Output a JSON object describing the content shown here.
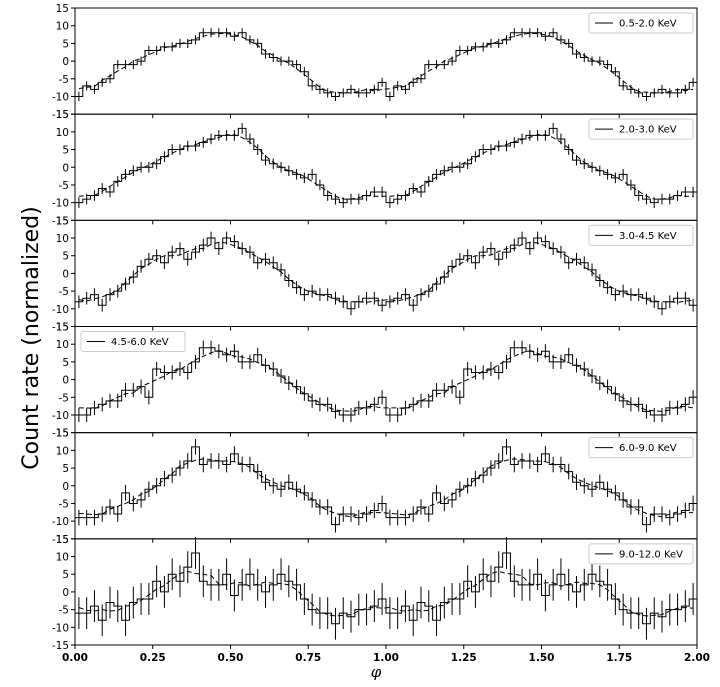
{
  "chart_data": {
    "type": "line",
    "ylabel": "Count rate (normalized)",
    "xlabel": "φ",
    "xlim": [
      0.0,
      2.0
    ],
    "ylim": [
      -15,
      15
    ],
    "xticks": [
      "0.00",
      "0.25",
      "0.50",
      "0.75",
      "1.00",
      "1.25",
      "1.50",
      "1.75",
      "2.00"
    ],
    "yticks": [
      "15",
      "10",
      "5",
      "0",
      "-5",
      "-10",
      "-15"
    ],
    "grid": false,
    "legend_placement": [
      "top-right",
      "top-right",
      "top-right",
      "top-left",
      "top-right",
      "top-right"
    ],
    "panels": [
      {
        "name": "0.5-2.0 KeV",
        "err": 1.3,
        "values": [
          -10,
          -7,
          -8,
          -6,
          -5,
          -1,
          -1,
          -1,
          0,
          3,
          3,
          4,
          4,
          5,
          5,
          6,
          8,
          8,
          8,
          8,
          7,
          8,
          6,
          5,
          2,
          1,
          0,
          0,
          -1,
          -3,
          -7,
          -8,
          -9,
          -10,
          -9,
          -8,
          -9,
          -9,
          -8,
          -6,
          -10,
          -7,
          -8,
          -6,
          -5,
          -1,
          -1,
          -1,
          0,
          3,
          3,
          4,
          4,
          5,
          5,
          6,
          8,
          8,
          8,
          8,
          7,
          8,
          6,
          5,
          2,
          1,
          0,
          0,
          -1,
          -3,
          -7,
          -8,
          -9,
          -10,
          -9,
          -8,
          -9,
          -9,
          -8,
          -6
        ]
      },
      {
        "name": "2.0-3.0 KeV",
        "err": 1.5,
        "values": [
          -10,
          -9,
          -8,
          -6,
          -7,
          -4,
          -2,
          -1,
          0,
          0,
          1,
          3,
          5,
          5,
          6,
          6,
          7,
          8,
          9,
          9,
          9,
          11,
          8,
          5,
          2,
          1,
          0,
          -1,
          -2,
          -3,
          -2,
          -5,
          -8,
          -9,
          -10,
          -9,
          -9,
          -8,
          -7,
          -7,
          -10,
          -9,
          -8,
          -6,
          -7,
          -4,
          -2,
          -1,
          0,
          0,
          1,
          3,
          5,
          5,
          6,
          6,
          7,
          8,
          9,
          9,
          9,
          11,
          8,
          5,
          2,
          1,
          0,
          -1,
          -2,
          -3,
          -2,
          -5,
          -8,
          -9,
          -10,
          -9,
          -9,
          -8,
          -7,
          -7
        ]
      },
      {
        "name": "3.0-4.5 KeV",
        "err": 1.8,
        "values": [
          -8,
          -7,
          -6,
          -9,
          -6,
          -5,
          -3,
          -1,
          2,
          4,
          5,
          3,
          6,
          7,
          4,
          6,
          8,
          10,
          7,
          10,
          9,
          7,
          6,
          3,
          4,
          3,
          1,
          -2,
          -4,
          -6,
          -5,
          -6,
          -6,
          -7,
          -8,
          -10,
          -8,
          -7,
          -7,
          -9,
          -8,
          -7,
          -6,
          -9,
          -6,
          -5,
          -3,
          -1,
          2,
          4,
          5,
          3,
          6,
          7,
          4,
          6,
          8,
          10,
          7,
          10,
          9,
          7,
          6,
          3,
          4,
          3,
          1,
          -2,
          -4,
          -6,
          -5,
          -6,
          -6,
          -7,
          -8,
          -10,
          -8,
          -7,
          -7,
          -9
        ]
      },
      {
        "name": "4.5-6.0 KeV",
        "err": 2.0,
        "values": [
          -10,
          -10,
          -8,
          -7,
          -6,
          -6,
          -3,
          -3,
          -2,
          -5,
          3,
          2,
          2,
          3,
          2,
          5,
          9,
          9,
          8,
          7,
          8,
          5,
          5,
          7,
          4,
          3,
          1,
          -1,
          -2,
          -4,
          -6,
          -7,
          -7,
          -9,
          -10,
          -10,
          -8,
          -8,
          -7,
          -5,
          -10,
          -10,
          -8,
          -7,
          -6,
          -6,
          -3,
          -3,
          -2,
          -5,
          3,
          2,
          2,
          3,
          2,
          5,
          9,
          9,
          8,
          7,
          8,
          5,
          5,
          7,
          4,
          3,
          1,
          -1,
          -2,
          -4,
          -6,
          -7,
          -7,
          -9,
          -10,
          -10,
          -8,
          -8,
          -7,
          -5
        ]
      },
      {
        "name": "6.0-9.0 KeV",
        "err": 2.2,
        "values": [
          -9,
          -9,
          -9,
          -8,
          -6,
          -8,
          -2,
          -5,
          -4,
          -1,
          0,
          2,
          3,
          5,
          7,
          11,
          6,
          7,
          7,
          6,
          9,
          6,
          6,
          4,
          1,
          0,
          -1,
          1,
          -1,
          -2,
          -4,
          -6,
          -6,
          -11,
          -8,
          -8,
          -9,
          -8,
          -7,
          -5,
          -9,
          -9,
          -9,
          -8,
          -6,
          -8,
          -2,
          -5,
          -4,
          -1,
          0,
          2,
          3,
          5,
          7,
          11,
          6,
          7,
          7,
          6,
          9,
          6,
          6,
          4,
          1,
          0,
          -1,
          1,
          -1,
          -2,
          -4,
          -6,
          -6,
          -11,
          -8,
          -8,
          -9,
          -8,
          -7,
          -5
        ]
      },
      {
        "name": "9.0-12.0 KeV",
        "err": 4.5,
        "values": [
          -6,
          -6,
          -4,
          -8,
          -3,
          -4,
          -8,
          -3,
          -2,
          -2,
          3,
          0,
          5,
          3,
          7,
          11,
          3,
          2,
          2,
          5,
          -1,
          2,
          5,
          2,
          0,
          2,
          5,
          3,
          2,
          -2,
          -5,
          -6,
          -6,
          -9,
          -6,
          -7,
          -5,
          -5,
          -4,
          -2,
          -6,
          -6,
          -4,
          -8,
          -3,
          -4,
          -8,
          -3,
          -2,
          -2,
          3,
          0,
          5,
          3,
          7,
          11,
          3,
          2,
          2,
          5,
          -1,
          2,
          5,
          2,
          0,
          2,
          5,
          3,
          2,
          -2,
          -5,
          -6,
          -6,
          -9,
          -6,
          -7,
          -5,
          -5,
          -4,
          -2
        ]
      }
    ]
  }
}
